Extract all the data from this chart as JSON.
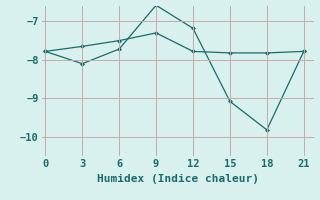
{
  "line1_x": [
    0,
    3,
    6,
    9,
    12,
    15,
    18,
    21
  ],
  "line1_y": [
    -7.78,
    -7.65,
    -7.5,
    -7.3,
    -7.78,
    -7.82,
    -7.82,
    -7.78
  ],
  "line2_x": [
    0,
    3,
    6,
    9,
    12,
    15,
    18,
    21
  ],
  "line2_y": [
    -7.78,
    -8.1,
    -7.72,
    -6.58,
    -7.18,
    -9.08,
    -9.82,
    -7.78
  ],
  "line_color": "#1a6b6b",
  "marker": "D",
  "markersize": 2.5,
  "xlabel": "Humidex (Indice chaleur)",
  "xticks": [
    0,
    3,
    6,
    9,
    12,
    15,
    18,
    21
  ],
  "yticks": [
    -10,
    -9,
    -8,
    -7
  ],
  "ylim": [
    -10.5,
    -6.6
  ],
  "xlim": [
    -0.3,
    21.8
  ],
  "bg_color": "#d8f0ee",
  "grid_color": "#c8a8a8",
  "font_color": "#1a6b6b",
  "xlabel_fontsize": 8,
  "tick_fontsize": 7.5
}
